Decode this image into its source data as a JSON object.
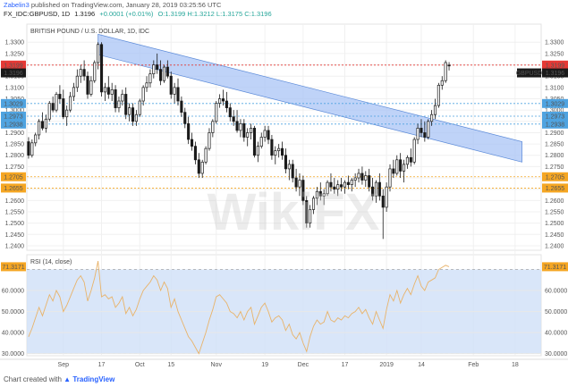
{
  "header": {
    "publisher": "Zabelin3",
    "published_text": "published on TradingView.com, January 28, 2019 03:25:56 UTC",
    "symbol": "FX_IDC:GBPUSD, 1D",
    "last": "1.3196",
    "change": "+0.0001 (+0.01%)",
    "ohlc": "O:1.3199 H:1.3212 L:1.3175 C:1.3196"
  },
  "footer": {
    "prefix": "Chart created with",
    "brand": "TradingView"
  },
  "watermark": "WikiFX",
  "chart_data": [
    {
      "type": "candlestick",
      "title": "BRITISH POUND / U.S. DOLLAR, 1D, IDC",
      "ylim": [
        1.238,
        1.338
      ],
      "yticks": [
        "1.3300",
        "1.3250",
        "1.3200",
        "1.3150",
        "1.3100",
        "1.3050",
        "1.3000",
        "1.2950",
        "1.2900",
        "1.2850",
        "1.2800",
        "1.2750",
        "1.2700",
        "1.2650",
        "1.2600",
        "1.2550",
        "1.2500",
        "1.2450",
        "1.2400"
      ],
      "xticks": [
        {
          "label": "Sep",
          "i": 10
        },
        {
          "label": "17",
          "i": 21
        },
        {
          "label": "Oct",
          "i": 32
        },
        {
          "label": "15",
          "i": 41
        },
        {
          "label": "Nov",
          "i": 54
        },
        {
          "label": "19",
          "i": 68
        },
        {
          "label": "Dec",
          "i": 79
        },
        {
          "label": "17",
          "i": 91
        },
        {
          "label": "2019",
          "i": 103
        },
        {
          "label": "14",
          "i": 113
        },
        {
          "label": "Feb",
          "i": 128
        },
        {
          "label": "18",
          "i": 140
        }
      ],
      "price_labels": [
        {
          "value": 1.3199,
          "text": "1.3199",
          "color": "#e53935"
        },
        {
          "value": 1.3196,
          "text": "1.3196",
          "color": "#1a1a1a"
        },
        {
          "value": 1.3029,
          "text": "1.3029",
          "color": "#4fa3e0"
        },
        {
          "value": 1.2973,
          "text": "1.2973",
          "color": "#4fa3e0"
        },
        {
          "value": 1.2938,
          "text": "1.2938",
          "color": "#4fa3e0"
        },
        {
          "value": 1.2705,
          "text": "1.2705",
          "color": "#f5a623"
        },
        {
          "value": 1.2655,
          "text": "1.2655",
          "color": "#f5a623"
        }
      ],
      "symbol_label": "GBPUSD",
      "channel": {
        "upper": [
          {
            "i": 20,
            "v": 1.3335
          },
          {
            "i": 142,
            "v": 1.286
          }
        ],
        "lower": [
          {
            "i": 20,
            "v": 1.3245
          },
          {
            "i": 142,
            "v": 1.277
          }
        ]
      },
      "series": [
        {
          "name": "GBPUSD",
          "ohlc": [
            [
              1.286,
              1.288,
              1.2785,
              1.28
            ],
            [
              1.28,
              1.287,
              1.279,
              1.2855
            ],
            [
              1.2855,
              1.29,
              1.284,
              1.289
            ],
            [
              1.289,
              1.296,
              1.287,
              1.295
            ],
            [
              1.295,
              1.299,
              1.291,
              1.292
            ],
            [
              1.292,
              1.298,
              1.29,
              1.296
            ],
            [
              1.296,
              1.304,
              1.295,
              1.303
            ],
            [
              1.303,
              1.306,
              1.299,
              1.3
            ],
            [
              1.3,
              1.308,
              1.299,
              1.307
            ],
            [
              1.307,
              1.311,
              1.303,
              1.305
            ],
            [
              1.305,
              1.309,
              1.296,
              1.297
            ],
            [
              1.297,
              1.302,
              1.293,
              1.3
            ],
            [
              1.3,
              1.308,
              1.299,
              1.306
            ],
            [
              1.306,
              1.312,
              1.304,
              1.31
            ],
            [
              1.31,
              1.318,
              1.308,
              1.315
            ],
            [
              1.315,
              1.32,
              1.312,
              1.318
            ],
            [
              1.318,
              1.322,
              1.313,
              1.315
            ],
            [
              1.315,
              1.317,
              1.305,
              1.307
            ],
            [
              1.307,
              1.315,
              1.306,
              1.313
            ],
            [
              1.313,
              1.322,
              1.312,
              1.321
            ],
            [
              1.321,
              1.33,
              1.318,
              1.329
            ],
            [
              1.329,
              1.33,
              1.306,
              1.308
            ],
            [
              1.308,
              1.312,
              1.304,
              1.31
            ],
            [
              1.31,
              1.315,
              1.305,
              1.307
            ],
            [
              1.307,
              1.312,
              1.304,
              1.309
            ],
            [
              1.309,
              1.311,
              1.299,
              1.301
            ],
            [
              1.301,
              1.306,
              1.299,
              1.304
            ],
            [
              1.304,
              1.309,
              1.302,
              1.307
            ],
            [
              1.307,
              1.31,
              1.296,
              1.298
            ],
            [
              1.298,
              1.303,
              1.295,
              1.301
            ],
            [
              1.301,
              1.303,
              1.293,
              1.295
            ],
            [
              1.295,
              1.3,
              1.293,
              1.298
            ],
            [
              1.298,
              1.305,
              1.297,
              1.304
            ],
            [
              1.304,
              1.311,
              1.302,
              1.31
            ],
            [
              1.31,
              1.315,
              1.308,
              1.312
            ],
            [
              1.312,
              1.318,
              1.31,
              1.316
            ],
            [
              1.316,
              1.322,
              1.314,
              1.32
            ],
            [
              1.32,
              1.325,
              1.316,
              1.318
            ],
            [
              1.318,
              1.322,
              1.311,
              1.313
            ],
            [
              1.313,
              1.32,
              1.312,
              1.319
            ],
            [
              1.319,
              1.322,
              1.314,
              1.315
            ],
            [
              1.315,
              1.317,
              1.305,
              1.307
            ],
            [
              1.307,
              1.312,
              1.303,
              1.31
            ],
            [
              1.31,
              1.314,
              1.302,
              1.304
            ],
            [
              1.304,
              1.306,
              1.297,
              1.299
            ],
            [
              1.299,
              1.301,
              1.292,
              1.294
            ],
            [
              1.294,
              1.297,
              1.285,
              1.287
            ],
            [
              1.287,
              1.29,
              1.282,
              1.284
            ],
            [
              1.284,
              1.286,
              1.276,
              1.278
            ],
            [
              1.278,
              1.281,
              1.27,
              1.272
            ],
            [
              1.272,
              1.278,
              1.27,
              1.277
            ],
            [
              1.277,
              1.284,
              1.276,
              1.283
            ],
            [
              1.283,
              1.292,
              1.282,
              1.29
            ],
            [
              1.29,
              1.296,
              1.288,
              1.295
            ],
            [
              1.295,
              1.304,
              1.294,
              1.303
            ],
            [
              1.303,
              1.307,
              1.301,
              1.305
            ],
            [
              1.305,
              1.309,
              1.302,
              1.304
            ],
            [
              1.304,
              1.308,
              1.299,
              1.301
            ],
            [
              1.301,
              1.303,
              1.295,
              1.297
            ],
            [
              1.297,
              1.3,
              1.293,
              1.295
            ],
            [
              1.295,
              1.3,
              1.29,
              1.291
            ],
            [
              1.291,
              1.296,
              1.288,
              1.294
            ],
            [
              1.294,
              1.296,
              1.286,
              1.288
            ],
            [
              1.288,
              1.292,
              1.284,
              1.29
            ],
            [
              1.29,
              1.294,
              1.287,
              1.292
            ],
            [
              1.292,
              1.293,
              1.279,
              1.28
            ],
            [
              1.28,
              1.286,
              1.277,
              1.284
            ],
            [
              1.284,
              1.29,
              1.283,
              1.288
            ],
            [
              1.288,
              1.293,
              1.286,
              1.291
            ],
            [
              1.291,
              1.293,
              1.285,
              1.287
            ],
            [
              1.287,
              1.289,
              1.278,
              1.28
            ],
            [
              1.28,
              1.284,
              1.276,
              1.282
            ],
            [
              1.282,
              1.285,
              1.279,
              1.283
            ],
            [
              1.283,
              1.286,
              1.278,
              1.28
            ],
            [
              1.28,
              1.283,
              1.272,
              1.274
            ],
            [
              1.274,
              1.278,
              1.269,
              1.276
            ],
            [
              1.276,
              1.278,
              1.268,
              1.27
            ],
            [
              1.27,
              1.274,
              1.264,
              1.266
            ],
            [
              1.266,
              1.272,
              1.262,
              1.269
            ],
            [
              1.269,
              1.271,
              1.258,
              1.26
            ],
            [
              1.26,
              1.262,
              1.248,
              1.25
            ],
            [
              1.25,
              1.258,
              1.248,
              1.256
            ],
            [
              1.256,
              1.262,
              1.254,
              1.261
            ],
            [
              1.261,
              1.266,
              1.258,
              1.264
            ],
            [
              1.264,
              1.268,
              1.26,
              1.262
            ],
            [
              1.262,
              1.265,
              1.258,
              1.263
            ],
            [
              1.263,
              1.269,
              1.262,
              1.268
            ],
            [
              1.268,
              1.272,
              1.264,
              1.266
            ],
            [
              1.266,
              1.27,
              1.263,
              1.265
            ],
            [
              1.265,
              1.269,
              1.262,
              1.267
            ],
            [
              1.267,
              1.27,
              1.264,
              1.266
            ],
            [
              1.266,
              1.269,
              1.263,
              1.268
            ],
            [
              1.268,
              1.271,
              1.265,
              1.267
            ],
            [
              1.267,
              1.27,
              1.264,
              1.269
            ],
            [
              1.269,
              1.272,
              1.266,
              1.27
            ],
            [
              1.27,
              1.274,
              1.268,
              1.272
            ],
            [
              1.272,
              1.275,
              1.267,
              1.269
            ],
            [
              1.269,
              1.273,
              1.266,
              1.271
            ],
            [
              1.271,
              1.274,
              1.264,
              1.266
            ],
            [
              1.266,
              1.27,
              1.26,
              1.262
            ],
            [
              1.262,
              1.269,
              1.259,
              1.268
            ],
            [
              1.268,
              1.272,
              1.26,
              1.262
            ],
            [
              1.262,
              1.265,
              1.243,
              1.257
            ],
            [
              1.257,
              1.268,
              1.255,
              1.266
            ],
            [
              1.266,
              1.276,
              1.264,
              1.274
            ],
            [
              1.274,
              1.278,
              1.27,
              1.272
            ],
            [
              1.272,
              1.28,
              1.271,
              1.278
            ],
            [
              1.278,
              1.281,
              1.27,
              1.273
            ],
            [
              1.273,
              1.278,
              1.268,
              1.276
            ],
            [
              1.276,
              1.28,
              1.274,
              1.279
            ],
            [
              1.279,
              1.283,
              1.275,
              1.277
            ],
            [
              1.277,
              1.288,
              1.276,
              1.287
            ],
            [
              1.287,
              1.294,
              1.285,
              1.292
            ],
            [
              1.292,
              1.296,
              1.288,
              1.29
            ],
            [
              1.29,
              1.295,
              1.286,
              1.288
            ],
            [
              1.288,
              1.296,
              1.287,
              1.295
            ],
            [
              1.295,
              1.3,
              1.293,
              1.298
            ],
            [
              1.298,
              1.305,
              1.296,
              1.302
            ],
            [
              1.302,
              1.312,
              1.301,
              1.311
            ],
            [
              1.311,
              1.315,
              1.309,
              1.313
            ],
            [
              1.313,
              1.322,
              1.312,
              1.321
            ],
            [
              1.3199,
              1.3212,
              1.3175,
              1.3196
            ]
          ]
        }
      ]
    },
    {
      "type": "line",
      "title": "RSI (14, close)",
      "ylim": [
        29,
        77
      ],
      "yticks": [
        "60.0000",
        "50.0000",
        "40.0000",
        "30.0000"
      ],
      "last_label": "71.3171",
      "band": [
        30,
        70
      ],
      "series": [
        {
          "name": "RSI (14, close)",
          "values": [
            38,
            42,
            47,
            52,
            48,
            53,
            58,
            55,
            60,
            57,
            50,
            53,
            57,
            61,
            65,
            67,
            64,
            55,
            60,
            66,
            74,
            57,
            58,
            56,
            57,
            52,
            54,
            57,
            49,
            52,
            48,
            51,
            56,
            60,
            62,
            64,
            67,
            65,
            60,
            64,
            61,
            52,
            56,
            50,
            46,
            42,
            38,
            36,
            33,
            30,
            35,
            40,
            46,
            51,
            57,
            58,
            56,
            54,
            50,
            49,
            47,
            50,
            46,
            50,
            52,
            44,
            48,
            52,
            54,
            50,
            45,
            47,
            48,
            46,
            41,
            44,
            39,
            37,
            40,
            35,
            31,
            38,
            43,
            46,
            44,
            45,
            50,
            46,
            45,
            47,
            46,
            48,
            47,
            49,
            50,
            52,
            49,
            51,
            47,
            44,
            50,
            46,
            42,
            51,
            58,
            55,
            60,
            54,
            58,
            61,
            58,
            63,
            67,
            62,
            60,
            64,
            65,
            66,
            70,
            71,
            72,
            71.3
          ]
        }
      ]
    }
  ]
}
